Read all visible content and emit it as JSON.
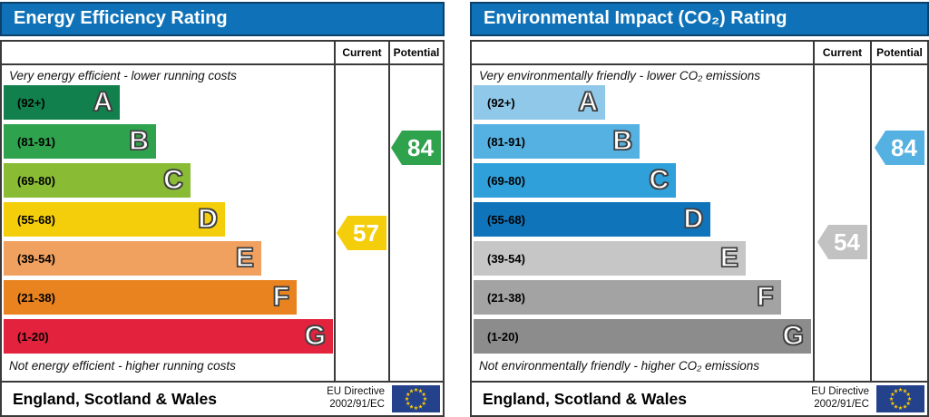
{
  "theme": {
    "title_bar_bg": "#0F72B8",
    "title_bar_border": "#0B4068",
    "title_text_color": "#FFFFFF",
    "table_border": "#3A3A3A",
    "flag_bg": "#24418C",
    "flag_stars": "#FFCC00"
  },
  "chart_data": [
    {
      "type": "rating-bands",
      "title": "Energy Efficiency Rating",
      "columns": [
        "Current",
        "Potential"
      ],
      "top_caption": "Very energy efficient - lower running costs",
      "bottom_caption": "Not energy efficient - higher running costs",
      "scale_range": [
        1,
        100
      ],
      "bands": [
        {
          "letter": "A",
          "range_label": "(92+)",
          "min": 92,
          "max": 100,
          "color": "#11804C",
          "width_pct": 35.3
        },
        {
          "letter": "B",
          "range_label": "(81-91)",
          "min": 81,
          "max": 91,
          "color": "#2EA24D",
          "width_pct": 46.3
        },
        {
          "letter": "C",
          "range_label": "(69-80)",
          "min": 69,
          "max": 80,
          "color": "#8ABB35",
          "width_pct": 56.7
        },
        {
          "letter": "D",
          "range_label": "(55-68)",
          "min": 55,
          "max": 68,
          "color": "#F5CE0B",
          "width_pct": 67.2
        },
        {
          "letter": "E",
          "range_label": "(39-54)",
          "min": 39,
          "max": 54,
          "color": "#F0A160",
          "width_pct": 78.2
        },
        {
          "letter": "F",
          "range_label": "(21-38)",
          "min": 21,
          "max": 38,
          "color": "#E8831F",
          "width_pct": 89.0
        },
        {
          "letter": "G",
          "range_label": "(1-20)",
          "min": 1,
          "max": 20,
          "color": "#E3233D",
          "width_pct": 100
        }
      ],
      "current": {
        "value": 57,
        "band": "D",
        "color": "#F5CE0B"
      },
      "potential": {
        "value": 84,
        "band": "B",
        "color": "#2EA24D"
      },
      "region_label": "England, Scotland & Wales",
      "directive_line1": "EU Directive",
      "directive_line2": "2002/91/EC"
    },
    {
      "type": "rating-bands",
      "title": "Environmental Impact (CO₂) Rating",
      "columns": [
        "Current",
        "Potential"
      ],
      "top_caption": "Very environmentally friendly - lower CO₂ emissions",
      "bottom_caption": "Not environmentally friendly - higher CO₂ emissions",
      "scale_range": [
        1,
        100
      ],
      "bands": [
        {
          "letter": "A",
          "range_label": "(92+)",
          "min": 92,
          "max": 100,
          "color": "#8FC8E8",
          "width_pct": 39.0
        },
        {
          "letter": "B",
          "range_label": "(81-91)",
          "min": 81,
          "max": 91,
          "color": "#55B1E2",
          "width_pct": 49.2
        },
        {
          "letter": "C",
          "range_label": "(69-80)",
          "min": 69,
          "max": 80,
          "color": "#2FA0DA",
          "width_pct": 60.0
        },
        {
          "letter": "D",
          "range_label": "(55-68)",
          "min": 55,
          "max": 68,
          "color": "#0F74BA",
          "width_pct": 70.2
        },
        {
          "letter": "E",
          "range_label": "(39-54)",
          "min": 39,
          "max": 54,
          "color": "#C6C6C6",
          "width_pct": 80.6
        },
        {
          "letter": "F",
          "range_label": "(21-38)",
          "min": 21,
          "max": 38,
          "color": "#A3A3A3",
          "width_pct": 91.0
        },
        {
          "letter": "G",
          "range_label": "(1-20)",
          "min": 1,
          "max": 20,
          "color": "#8C8C8C",
          "width_pct": 100
        }
      ],
      "current": {
        "value": 54,
        "band": "E",
        "color": "#C2C2C2"
      },
      "potential": {
        "value": 84,
        "band": "B",
        "color": "#55B1E2"
      },
      "region_label": "England, Scotland & Wales",
      "directive_line1": "EU Directive",
      "directive_line2": "2002/91/EC"
    }
  ]
}
